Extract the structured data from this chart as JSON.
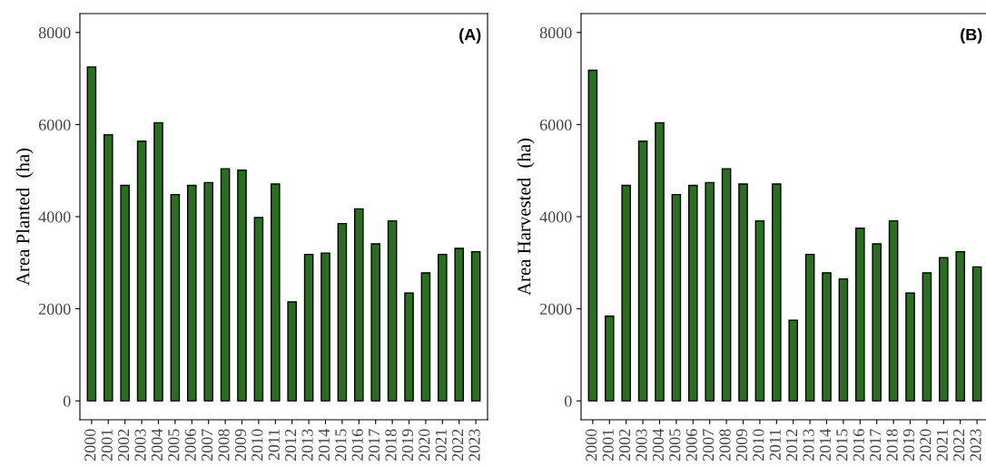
{
  "chart_data": [
    {
      "type": "bar",
      "ylabel": "Area Planted  (ha)",
      "annotations": [
        "(A)"
      ],
      "categories": [
        "2000",
        "2001",
        "2002",
        "2003",
        "2004",
        "2005",
        "2006",
        "2007",
        "2008",
        "2009",
        "2010",
        "2011",
        "2012",
        "2013",
        "2014",
        "2015",
        "2016",
        "2017",
        "2018",
        "2019",
        "2020",
        "2021",
        "2022",
        "2023"
      ],
      "values": [
        7250,
        5780,
        4680,
        5640,
        6040,
        4480,
        4680,
        4740,
        5040,
        5010,
        3980,
        4710,
        2150,
        3180,
        3210,
        3850,
        4170,
        3410,
        3910,
        2340,
        2780,
        3180,
        3310,
        3240
      ],
      "color": "#2b6e22",
      "ylim": [
        -410,
        8410
      ],
      "yticks": [
        0,
        2000,
        4000,
        6000,
        8000
      ],
      "grid": false
    },
    {
      "type": "bar",
      "ylabel": "Area Harvested  (ha)",
      "annotations": [
        "(B)"
      ],
      "categories": [
        "2000",
        "2001",
        "2002",
        "2003",
        "2004",
        "2005",
        "2006",
        "2007",
        "2008",
        "2009",
        "2010",
        "2011",
        "2012",
        "2013",
        "2014",
        "2015",
        "2016",
        "2017",
        "2018",
        "2019",
        "2020",
        "2021",
        "2022",
        "2023"
      ],
      "values": [
        7180,
        1840,
        4680,
        5640,
        6040,
        4480,
        4680,
        4740,
        5040,
        4710,
        3910,
        4710,
        1750,
        3180,
        2780,
        2650,
        3750,
        3410,
        3910,
        2340,
        2780,
        3110,
        3240,
        2910
      ],
      "color": "#2b6e22",
      "ylim": [
        -410,
        8410
      ],
      "yticks": [
        0,
        2000,
        4000,
        6000,
        8000
      ],
      "grid": false
    }
  ]
}
